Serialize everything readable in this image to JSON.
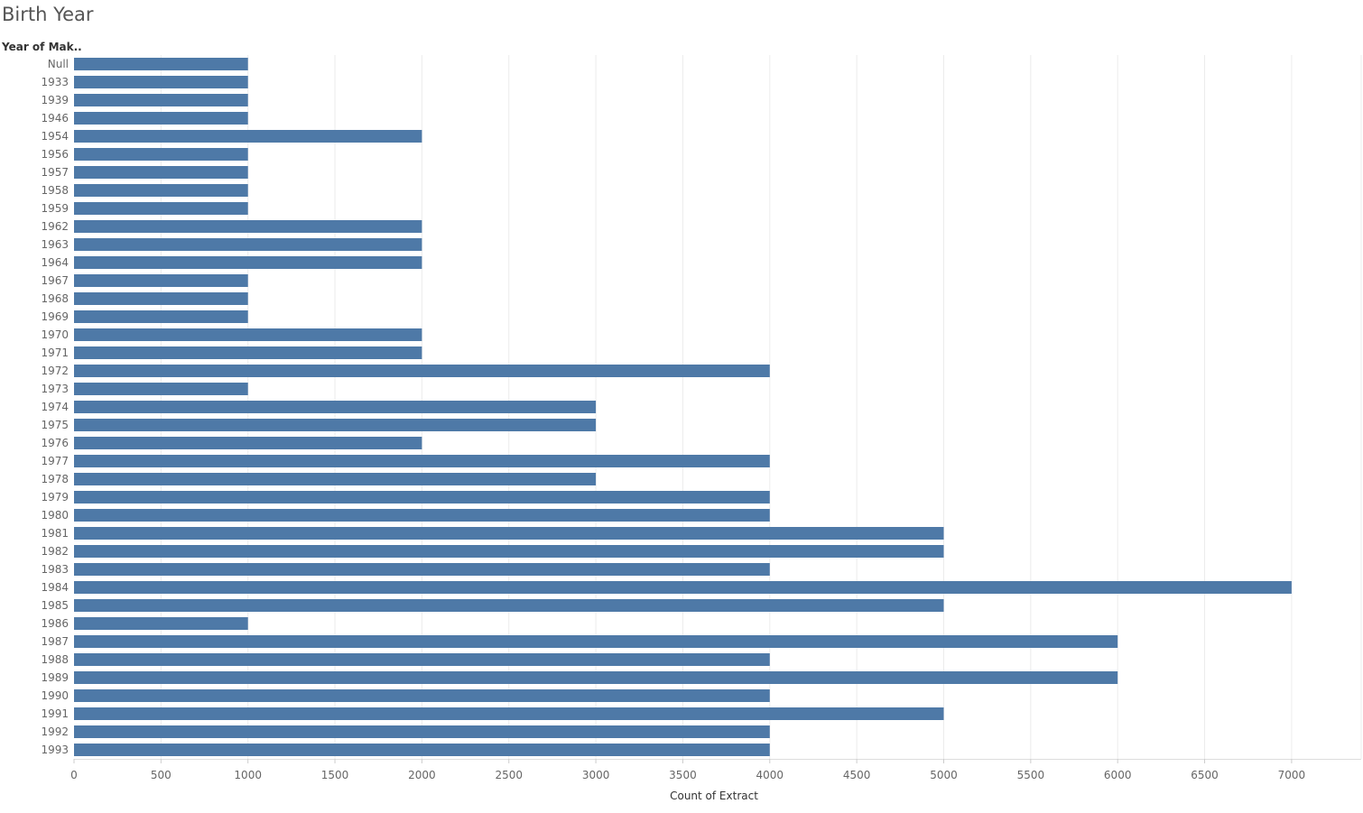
{
  "title": "Birth Year",
  "row_header": "Year of Mak..",
  "chart_data": {
    "type": "bar",
    "orientation": "horizontal",
    "xlabel": "Count of Extract",
    "ylabel": "Year of Mak..",
    "xlim": [
      0,
      7400
    ],
    "xticks": [
      0,
      500,
      1000,
      1500,
      2000,
      2500,
      3000,
      3500,
      4000,
      4500,
      5000,
      5500,
      6000,
      6500,
      7000
    ],
    "grid": true,
    "bar_color": "#4e79a7",
    "categories": [
      "Null",
      "1933",
      "1939",
      "1946",
      "1954",
      "1956",
      "1957",
      "1958",
      "1959",
      "1962",
      "1963",
      "1964",
      "1967",
      "1968",
      "1969",
      "1970",
      "1971",
      "1972",
      "1973",
      "1974",
      "1975",
      "1976",
      "1977",
      "1978",
      "1979",
      "1980",
      "1981",
      "1982",
      "1983",
      "1984",
      "1985",
      "1986",
      "1987",
      "1988",
      "1989",
      "1990",
      "1991",
      "1992",
      "1993"
    ],
    "values": [
      1000,
      1000,
      1000,
      1000,
      2000,
      1000,
      1000,
      1000,
      1000,
      2000,
      2000,
      2000,
      1000,
      1000,
      1000,
      2000,
      2000,
      4000,
      1000,
      3000,
      3000,
      2000,
      4000,
      3000,
      4000,
      4000,
      5000,
      5000,
      4000,
      7000,
      5000,
      1000,
      6000,
      4000,
      6000,
      4000,
      5000,
      4000,
      4000
    ]
  }
}
